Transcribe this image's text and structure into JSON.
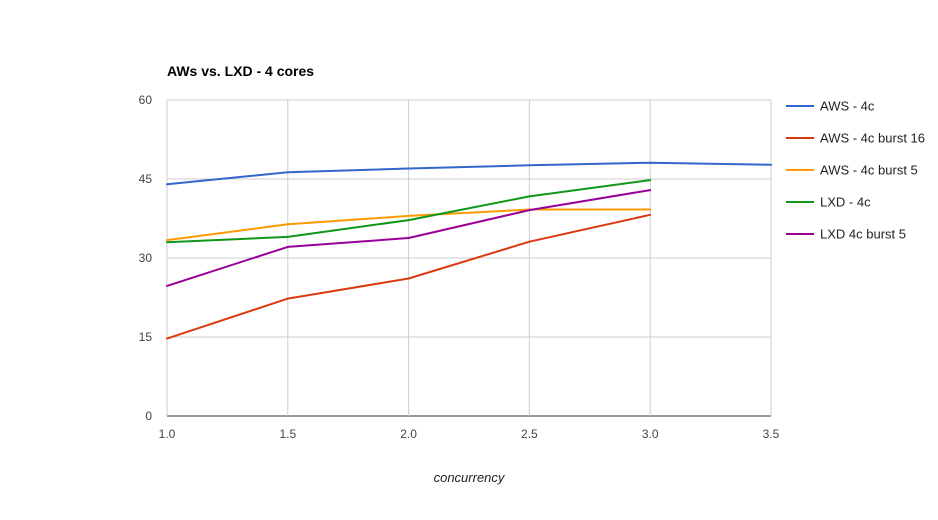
{
  "chart_data": {
    "type": "line",
    "title": "AWs vs. LXD - 4 cores",
    "xlabel": "concurrency",
    "ylabel": "",
    "xlim": [
      1.0,
      3.5
    ],
    "ylim": [
      0,
      60
    ],
    "x_ticks": [
      "1.0",
      "1.5",
      "2.0",
      "2.5",
      "3.0",
      "3.5"
    ],
    "y_ticks": [
      "0",
      "15",
      "30",
      "45",
      "60"
    ],
    "grid": true,
    "legend_position": "right",
    "series": [
      {
        "name": "AWS - 4c",
        "color": "#3366cc",
        "points": [
          [
            1.0,
            44.0
          ],
          [
            1.5,
            46.3
          ],
          [
            2.0,
            47.0
          ],
          [
            2.5,
            47.6
          ],
          [
            3.0,
            48.1
          ],
          [
            3.5,
            47.7
          ]
        ]
      },
      {
        "name": "AWS - 4c burst 16",
        "color": "#dc3912",
        "points": [
          [
            1.0,
            14.7
          ],
          [
            1.5,
            22.3
          ],
          [
            2.0,
            26.1
          ],
          [
            2.5,
            33.1
          ],
          [
            3.0,
            38.2
          ]
        ]
      },
      {
        "name": "AWS - 4c burst 5",
        "color": "#ff9900",
        "points": [
          [
            1.0,
            33.4
          ],
          [
            1.5,
            36.4
          ],
          [
            2.0,
            38.0
          ],
          [
            2.5,
            39.2
          ],
          [
            3.0,
            39.2
          ]
        ]
      },
      {
        "name": "LXD - 4c",
        "color": "#109618",
        "points": [
          [
            1.0,
            33.0
          ],
          [
            1.5,
            34.0
          ],
          [
            2.0,
            37.2
          ],
          [
            2.5,
            41.7
          ],
          [
            3.0,
            44.8
          ]
        ]
      },
      {
        "name": "LXD 4c burst 5",
        "color": "#990099",
        "points": [
          [
            1.0,
            24.7
          ],
          [
            1.5,
            32.1
          ],
          [
            2.0,
            33.8
          ],
          [
            2.5,
            39.1
          ],
          [
            3.0,
            42.9
          ]
        ]
      }
    ]
  }
}
